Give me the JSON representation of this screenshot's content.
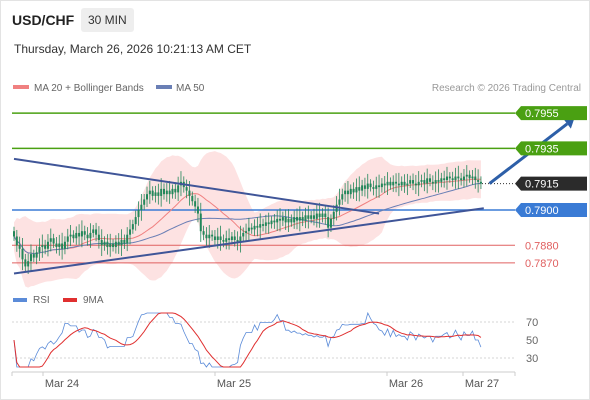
{
  "header": {
    "symbol": "USD/CHF",
    "timeframe": "30 MIN",
    "datetime": "Thursday, March 26, 2026 10:21:13 AM CET"
  },
  "legend": {
    "ma20_label": "MA 20 + Bollinger Bands",
    "ma50_label": "MA 50",
    "credit": "Research © 2026 Trading Central",
    "rsi_label": "RSI",
    "rsi_ma_label": "9MA"
  },
  "colors": {
    "candle": "#22875a",
    "ma20": "#f08080",
    "bollinger_fill": "#fde2e2",
    "ma50": "#6a7fb5",
    "trendline": "#3f5598",
    "target_green": "#4aa012",
    "pivot_blue": "#3a7bd5",
    "support_red": "#e06060",
    "current_dark": "#2b2b2b",
    "arrow": "#2d5fa8",
    "rsi": "#5b8bd8",
    "rsi_ma": "#e03030"
  },
  "chart_data": {
    "type": "candlestick",
    "instrument": "USD/CHF",
    "timeframe": "30 MIN",
    "ylim": [
      0.7862,
      0.7963
    ],
    "x_ticks": [
      "Mar 24",
      "Mar 25",
      "Mar 26",
      "Mar 27"
    ],
    "price_levels": [
      {
        "value": 0.7955,
        "label": "0.7955",
        "role": "target"
      },
      {
        "value": 0.7935,
        "label": "0.7935",
        "role": "target"
      },
      {
        "value": 0.7915,
        "label": "0.7915",
        "role": "current"
      },
      {
        "value": 0.79,
        "label": "0.7900",
        "role": "pivot"
      },
      {
        "value": 0.788,
        "label": "0.7880",
        "role": "support"
      },
      {
        "value": 0.787,
        "label": "0.7870",
        "role": "support"
      }
    ],
    "trendlines": {
      "upper": [
        {
          "slot": 0,
          "value": 0.7929
        },
        {
          "slot": 129,
          "value": 0.7898
        }
      ],
      "lower": [
        {
          "slot": 0,
          "value": 0.7864
        },
        {
          "slot": 166,
          "value": 0.7901
        }
      ]
    },
    "projection": {
      "from": {
        "slot": 168,
        "value": 0.7915
      },
      "to": {
        "slot": 198,
        "value": 0.7952
      }
    },
    "candles_close": [
      0.7885,
      0.788,
      0.7878,
      0.7872,
      0.7868,
      0.7871,
      0.7875,
      0.7873,
      0.7876,
      0.7879,
      0.788,
      0.7878,
      0.7882,
      0.7884,
      0.7881,
      0.7879,
      0.7881,
      0.7878,
      0.7882,
      0.7885,
      0.7886,
      0.7884,
      0.7887,
      0.7885,
      0.7888,
      0.7886,
      0.7884,
      0.7887,
      0.7889,
      0.7886,
      0.7883,
      0.788,
      0.7882,
      0.7879,
      0.7881,
      0.7879,
      0.7882,
      0.788,
      0.7883,
      0.7881,
      0.7886,
      0.7889,
      0.7892,
      0.7896,
      0.79,
      0.7903,
      0.7906,
      0.7909,
      0.7911,
      0.7908,
      0.791,
      0.7908,
      0.7912,
      0.7909,
      0.7911,
      0.7909,
      0.7912,
      0.791,
      0.7914,
      0.7916,
      0.7913,
      0.7911,
      0.7908,
      0.7905,
      0.7902,
      0.7898,
      0.7888,
      0.7886,
      0.7884,
      0.7886,
      0.7885,
      0.7883,
      0.7885,
      0.7883,
      0.7882,
      0.7884,
      0.7883,
      0.7885,
      0.7883,
      0.7882,
      0.7885,
      0.7887,
      0.7888,
      0.789,
      0.7889,
      0.7891,
      0.789,
      0.7892,
      0.7891,
      0.7893,
      0.7892,
      0.7894,
      0.7893,
      0.7895,
      0.7894,
      0.7896,
      0.7893,
      0.7895,
      0.7893,
      0.7896,
      0.7894,
      0.7896,
      0.7894,
      0.7897,
      0.7895,
      0.7897,
      0.7895,
      0.7898,
      0.7896,
      0.7898,
      0.7896,
      0.789,
      0.7895,
      0.7899,
      0.7903,
      0.7906,
      0.7909,
      0.7911,
      0.7909,
      0.7912,
      0.791,
      0.7913,
      0.7911,
      0.7914,
      0.7912,
      0.7915,
      0.7913,
      0.7912,
      0.7914,
      0.7913,
      0.7915,
      0.7914,
      0.7916,
      0.7914,
      0.7916,
      0.7915,
      0.7914,
      0.7916,
      0.7914,
      0.7915,
      0.7917,
      0.7915,
      0.7914,
      0.7916,
      0.7917,
      0.7915,
      0.7918,
      0.7916,
      0.7915,
      0.7917,
      0.7916,
      0.7918,
      0.7917,
      0.7919,
      0.7918,
      0.7917,
      0.7919,
      0.7918,
      0.7917,
      0.7919,
      0.792,
      0.7918,
      0.7919,
      0.7917,
      0.7916,
      0.7915
    ],
    "rsi": {
      "ylim": [
        20,
        80
      ],
      "ticks": [
        70,
        50,
        30
      ],
      "levels": [
        70,
        30
      ]
    }
  }
}
